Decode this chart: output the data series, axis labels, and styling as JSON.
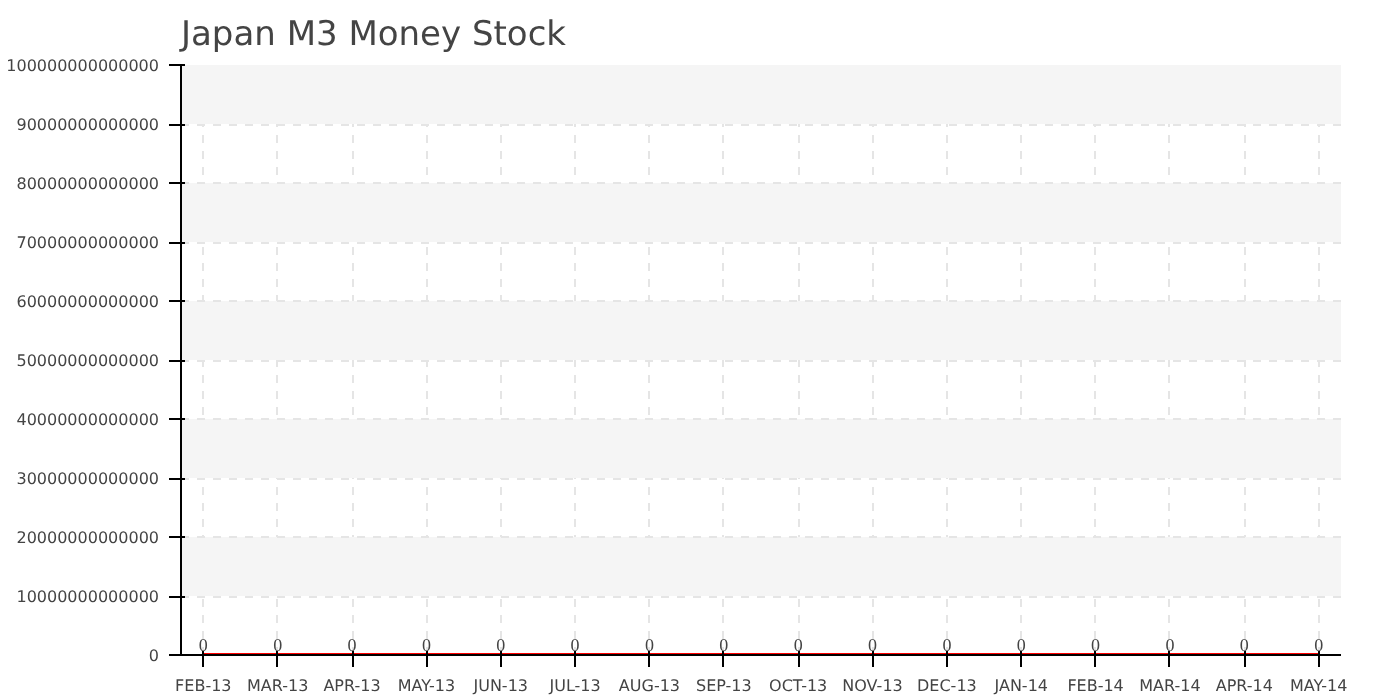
{
  "chart_data": {
    "type": "line",
    "title": "Japan M3 Money Stock",
    "categories": [
      "FEB-13",
      "MAR-13",
      "APR-13",
      "MAY-13",
      "JUN-13",
      "JUL-13",
      "AUG-13",
      "SEP-13",
      "OCT-13",
      "NOV-13",
      "DEC-13",
      "JAN-14",
      "FEB-14",
      "MAR-14",
      "APR-14",
      "MAY-14"
    ],
    "series": [
      {
        "color": "#ff0000",
        "values": [
          0,
          0,
          0,
          0,
          0,
          0,
          0,
          0,
          0,
          0,
          0,
          0,
          0,
          0,
          0,
          0
        ]
      }
    ],
    "ylim": [
      0,
      100000000000000
    ],
    "yticks": [
      0,
      10000000000000,
      20000000000000,
      30000000000000,
      40000000000000,
      50000000000000,
      60000000000000,
      70000000000000,
      80000000000000,
      90000000000000,
      100000000000000
    ],
    "data_labels": true,
    "grid": true
  }
}
